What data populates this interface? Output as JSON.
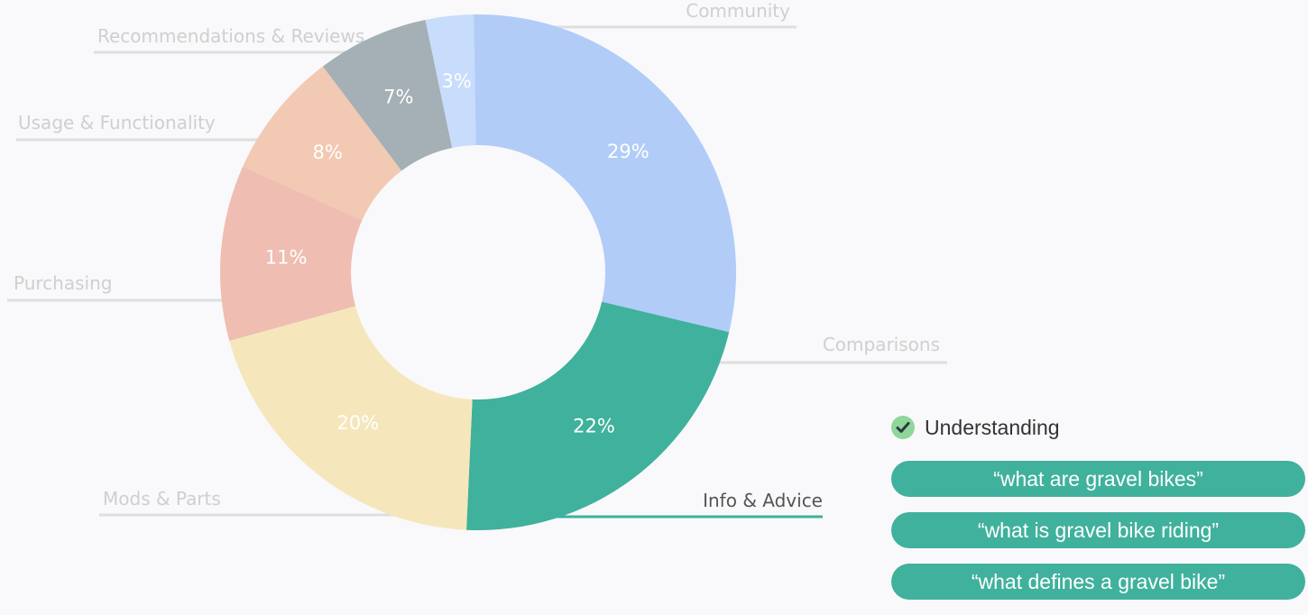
{
  "chart_data": {
    "type": "pie",
    "variant": "donut",
    "start_angle_deg": -1,
    "slices": [
      {
        "label": "Comparisons",
        "value": 29,
        "value_label": "29%",
        "color": "#b2ccf8"
      },
      {
        "label": "Info & Advice",
        "value": 22,
        "value_label": "22%",
        "color": "#40b19c",
        "highlighted": true
      },
      {
        "label": "Mods & Parts",
        "value": 20,
        "value_label": "20%",
        "color": "#f5e7bb"
      },
      {
        "label": "Purchasing",
        "value": 11,
        "value_label": "11%",
        "color": "#efbdb2"
      },
      {
        "label": "Usage & Functionality",
        "value": 8,
        "value_label": "8%",
        "color": "#f2c9b2"
      },
      {
        "label": "Recommendations & Reviews",
        "value": 7,
        "value_label": "7%",
        "color": "#a4b0b5"
      },
      {
        "label": "Community",
        "value": 3,
        "value_label": "3%",
        "color": "#c8dcfb"
      }
    ],
    "label_color": "#cfcfcf",
    "highlight_label_color": "#555555",
    "leader_line_color": "#dedede"
  },
  "panel": {
    "title": "Understanding",
    "check_icon": "check-circle-icon",
    "queries": [
      "“what are gravel bikes”",
      "“what is gravel bike riding”",
      "“what defines a gravel bike”"
    ]
  }
}
